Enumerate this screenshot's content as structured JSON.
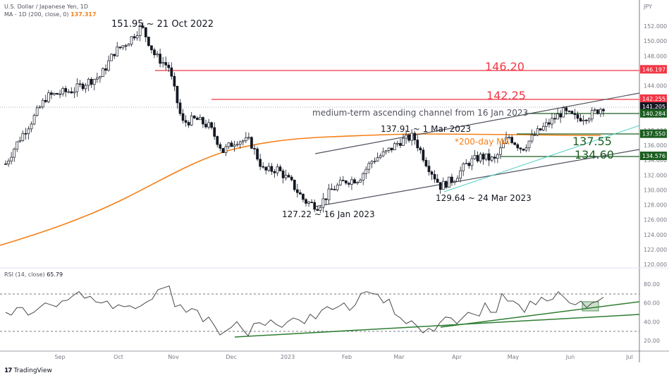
{
  "header": {
    "symbol_title": "U.S. Dollar / Japanese Yen, 1D",
    "ma_label": "MA - 1D (200, close, 0)",
    "ma_value": "137.317"
  },
  "rsi_pane": {
    "label": "RSI (14, close)",
    "value": "65.79"
  },
  "footer": {
    "logo_mark": "17",
    "logo_text": "TradingView"
  },
  "colors": {
    "resistance": "#f23645",
    "support": "#1b5e20",
    "ma": "#f57f17",
    "channel": "#50535e",
    "trendline_cyan": "#4dd0c4",
    "rsi_line": "#4a4a4a",
    "rsi_trend": "#2e7d32"
  },
  "chart_data": [
    {
      "type": "line",
      "title": "U.S. Dollar / Japanese Yen, 1D",
      "subtitle": "MA - 1D (200, close, 0) 137.317",
      "ylabel": "JPY",
      "xlabel": "",
      "x_ticks": [
        "Sep",
        "Oct",
        "Nov",
        "Dec",
        "2023",
        "Feb",
        "Mar",
        "Apr",
        "May",
        "Jun",
        "Jul"
      ],
      "y_ticks": [
        120,
        122,
        124,
        126,
        128,
        130,
        132,
        134,
        136,
        138,
        140,
        142,
        144,
        146,
        148,
        150,
        152
      ],
      "ylim": [
        119,
        153.5
      ],
      "series": [
        {
          "name": "USDJPY close (approx.)",
          "x": [
            "2022-08-15",
            "2022-08-22",
            "2022-08-29",
            "2022-09-05",
            "2022-09-12",
            "2022-09-19",
            "2022-09-26",
            "2022-10-03",
            "2022-10-10",
            "2022-10-17",
            "2022-10-21",
            "2022-10-24",
            "2022-10-31",
            "2022-11-07",
            "2022-11-14",
            "2022-11-21",
            "2022-11-28",
            "2022-12-05",
            "2022-12-12",
            "2022-12-19",
            "2022-12-26",
            "2023-01-02",
            "2023-01-09",
            "2023-01-16",
            "2023-01-23",
            "2023-01-30",
            "2023-02-06",
            "2023-02-13",
            "2023-02-20",
            "2023-03-01",
            "2023-03-06",
            "2023-03-13",
            "2023-03-24",
            "2023-04-03",
            "2023-04-10",
            "2023-04-17",
            "2023-04-24",
            "2023-05-01",
            "2023-05-08",
            "2023-05-15",
            "2023-05-22",
            "2023-05-29",
            "2023-06-05",
            "2023-06-12",
            "2023-06-16"
          ],
          "values": [
            133.5,
            136.8,
            139.5,
            142.5,
            143.0,
            143.4,
            144.5,
            145.3,
            148.5,
            149.9,
            151.95,
            148.0,
            146.5,
            139.0,
            139.5,
            138.5,
            135.2,
            136.7,
            136.5,
            132.5,
            132.8,
            131.0,
            128.5,
            127.8,
            130.0,
            131.2,
            131.5,
            134.0,
            135.0,
            136.5,
            137.2,
            133.5,
            130.5,
            131.5,
            133.6,
            134.5,
            134.0,
            137.2,
            135.5,
            137.5,
            139.0,
            140.5,
            139.6,
            140.0,
            141.2
          ]
        },
        {
          "name": "MA 200",
          "values_desc": "Rising from ~122.6 (mid Aug 2022) to ~136 (Dec 2022), flattening near 137.3 through Jun 2023",
          "last": 137.317
        }
      ],
      "price_labels": [
        {
          "value": "146.197",
          "color": "#f23645"
        },
        {
          "value": "142.255",
          "color": "#f23645"
        },
        {
          "value": "141.205",
          "color": "#131722"
        },
        {
          "value": "140.284",
          "color": "#1b5e20"
        },
        {
          "value": "137.550",
          "color": "#1b5e20"
        },
        {
          "value": "134.576",
          "color": "#1b5e20"
        }
      ],
      "annotations": [
        {
          "text": "151.95 ~ 21 Oct 2022",
          "color": "#131722"
        },
        {
          "text": "146.20",
          "color": "#f23645"
        },
        {
          "text": "142.25",
          "color": "#f23645"
        },
        {
          "text": "medium-term ascending channel from 16 Jan 2023",
          "color": "#50535e"
        },
        {
          "text": "137.91 ~ 1 Mar 2023",
          "color": "#131722"
        },
        {
          "text": "*200-day MA",
          "color": "#f57f17"
        },
        {
          "text": "137.55",
          "color": "#1b5e20"
        },
        {
          "text": "134.60",
          "color": "#1b5e20"
        },
        {
          "text": "129.64 ~ 24 Mar 2023",
          "color": "#131722"
        },
        {
          "text": "127.22 ~ 16 Jan 2023",
          "color": "#131722"
        }
      ],
      "grid": false,
      "legend_position": "top-left"
    },
    {
      "type": "line",
      "title": "RSI (14, close)",
      "subtitle": "65.79",
      "y_ticks": [
        20,
        40,
        60,
        80
      ],
      "ylim": [
        10,
        90
      ],
      "bands": [
        30,
        70
      ],
      "series": [
        {
          "name": "RSI",
          "values": [
            50,
            47,
            55,
            55,
            47,
            50,
            55,
            60,
            58,
            56,
            62,
            63,
            68,
            72,
            65,
            67,
            61,
            60,
            62,
            54,
            58,
            56,
            57,
            54,
            57,
            61,
            64,
            74,
            76,
            78,
            56,
            58,
            50,
            54,
            52,
            40,
            45,
            36,
            26,
            30,
            34,
            40,
            32,
            25,
            38,
            39,
            36,
            42,
            37,
            34,
            40,
            44,
            42,
            38,
            48,
            43,
            52,
            56,
            53,
            56,
            60,
            52,
            58,
            70,
            72,
            70,
            69,
            60,
            64,
            48,
            44,
            38,
            41,
            35,
            28,
            33,
            30,
            39,
            45,
            44,
            38,
            44,
            50,
            48,
            46,
            60,
            50,
            50,
            70,
            62,
            62,
            58,
            50,
            62,
            58,
            66,
            62,
            64,
            72,
            66,
            60,
            58,
            62,
            55,
            60,
            62,
            66
          ]
        }
      ],
      "trendlines": [
        "RSI support from Dec 2022 low",
        "RSI support from Mar 2023 low"
      ],
      "highlight_box": "RSI test of trendline in Jun 2023"
    }
  ]
}
